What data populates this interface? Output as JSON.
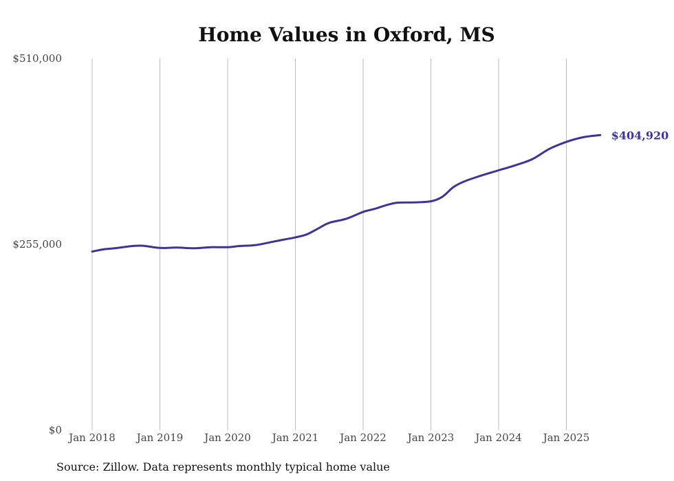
{
  "chart_data": {
    "type": "line",
    "title": "Home Values in Oxford, MS",
    "source": "Source: Zillow. Data represents monthly typical home value",
    "y_ticks": [
      {
        "value": 510000,
        "label": "$510,000"
      },
      {
        "value": 255000,
        "label": "$255,000"
      },
      {
        "value": 0,
        "label": "$0"
      }
    ],
    "ylim": [
      0,
      510000
    ],
    "x_ticks": [
      {
        "date": "2018-01",
        "label": "Jan 2018"
      },
      {
        "date": "2019-01",
        "label": "Jan 2019"
      },
      {
        "date": "2020-01",
        "label": "Jan 2020"
      },
      {
        "date": "2021-01",
        "label": "Jan 2021"
      },
      {
        "date": "2022-01",
        "label": "Jan 2022"
      },
      {
        "date": "2023-01",
        "label": "Jan 2023"
      },
      {
        "date": "2024-01",
        "label": "Jan 2024"
      },
      {
        "date": "2025-01",
        "label": "Jan 2025"
      }
    ],
    "grid": "vertical",
    "line_color": "#3a3596",
    "end_label": "$404,920",
    "series": [
      {
        "points": [
          [
            "2018-01",
            245000
          ],
          [
            "2018-03",
            248000
          ],
          [
            "2018-05",
            249500
          ],
          [
            "2018-08",
            252500
          ],
          [
            "2018-10",
            253000
          ],
          [
            "2019-01",
            250000
          ],
          [
            "2019-04",
            250500
          ],
          [
            "2019-07",
            249500
          ],
          [
            "2019-10",
            251000
          ],
          [
            "2020-01",
            251000
          ],
          [
            "2020-03",
            252500
          ],
          [
            "2020-06",
            254000
          ],
          [
            "2020-09",
            258500
          ],
          [
            "2020-11",
            261500
          ],
          [
            "2021-01",
            264500
          ],
          [
            "2021-03",
            268500
          ],
          [
            "2021-05",
            276500
          ],
          [
            "2021-07",
            284500
          ],
          [
            "2021-10",
            290000
          ],
          [
            "2022-01",
            299500
          ],
          [
            "2022-03",
            303500
          ],
          [
            "2022-05",
            308500
          ],
          [
            "2022-07",
            312000
          ],
          [
            "2022-10",
            312500
          ],
          [
            "2023-01",
            314000
          ],
          [
            "2023-03",
            320000
          ],
          [
            "2023-05",
            333500
          ],
          [
            "2023-07",
            341500
          ],
          [
            "2023-10",
            349500
          ],
          [
            "2024-01",
            356500
          ],
          [
            "2024-04",
            363500
          ],
          [
            "2024-07",
            372000
          ],
          [
            "2024-10",
            386000
          ],
          [
            "2025-01",
            395500
          ],
          [
            "2025-04",
            402000
          ],
          [
            "2025-07",
            404920
          ]
        ]
      }
    ]
  }
}
